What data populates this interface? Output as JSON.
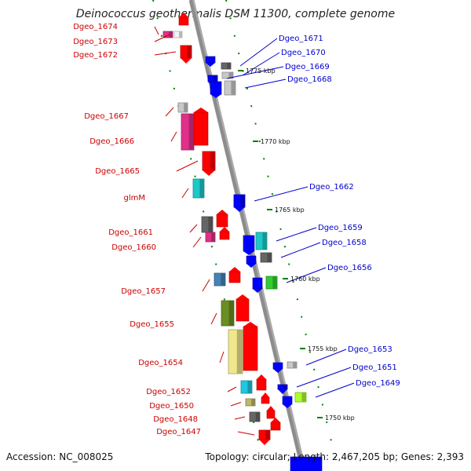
{
  "map": {
    "title": "Deinococcus geothermalis DSM 11300, complete genome",
    "accession": "Accession: NC_008025",
    "summary": "Topology: circular; Length: 2,467,205 bp; Genes: 2,393"
  },
  "colors": {
    "forward_label": "#cc0000",
    "reverse_label": "#0000cc",
    "backbone": "#8c8c8c",
    "tick": "#008000"
  },
  "kbp_marks": [
    "1775 kbp",
    "1770 kbp",
    "1765 kbp",
    "1760 kbp",
    "1755 kbp",
    "1750 kbp"
  ],
  "forward_genes": [
    {
      "label": "Dgeo_1674",
      "color": "#e0308a"
    },
    {
      "label": "Dgeo_1673",
      "color": "#f5f5f5"
    },
    {
      "label": "Dgeo_1672",
      "color": "#ff0000"
    },
    {
      "label": "Dgeo_1667",
      "color": "#c8c8c8"
    },
    {
      "label": "Dgeo_1666",
      "color": "#e0308a"
    },
    {
      "label": "Dgeo_1665",
      "color": "#ff0000"
    },
    {
      "label": "glmM",
      "color": "#1fc8c8"
    },
    {
      "label": "Dgeo_1661",
      "color": "#666666"
    },
    {
      "label": "Dgeo_1660",
      "color": "#e0308a"
    },
    {
      "label": "Dgeo_1657",
      "color": "#4682b4"
    },
    {
      "label": "Dgeo_1655",
      "color": "#6b8e23"
    },
    {
      "label": "Dgeo_1654",
      "color": "#f0e68c"
    },
    {
      "label": "Dgeo_1652",
      "color": "#1fc8e0"
    },
    {
      "label": "Dgeo_1650",
      "color": "#bdb76b"
    },
    {
      "label": "Dgeo_1648",
      "color": "#666666"
    },
    {
      "label": "Dgeo_1647",
      "color": "#ff0000"
    }
  ],
  "reverse_genes": [
    {
      "label": "Dgeo_1671",
      "color": "#666666"
    },
    {
      "label": "Dgeo_1670",
      "color": "#c8c8c8"
    },
    {
      "label": "Dgeo_1669",
      "color": "#0000ff"
    },
    {
      "label": "Dgeo_1668",
      "color": "#c8c8c8"
    },
    {
      "label": "Dgeo_1662",
      "color": "#0000ff"
    },
    {
      "label": "Dgeo_1659",
      "color": "#1fc8c8"
    },
    {
      "label": "Dgeo_1658",
      "color": "#666666"
    },
    {
      "label": "Dgeo_1656",
      "color": "#32cd32"
    },
    {
      "label": "Dgeo_1653",
      "color": "#c8c8c8"
    },
    {
      "label": "Dgeo_1651",
      "color": "#0000ff"
    },
    {
      "label": "Dgeo_1649",
      "color": "#adff2f"
    }
  ]
}
